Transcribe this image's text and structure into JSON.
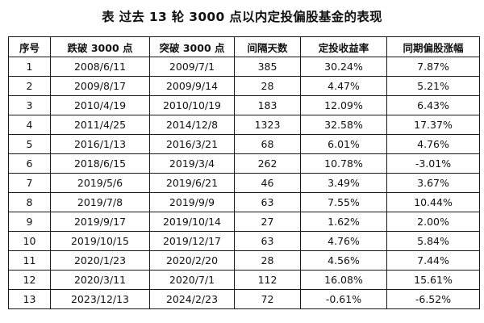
{
  "title": "表  过去 13 轮 3000 点以内定投偏股基金的表现",
  "table": {
    "headers": [
      "序号",
      "跌破 3000 点",
      "突破 3000 点",
      "间隔天数",
      "定投收益率",
      "同期偏股涨幅"
    ],
    "rows": [
      [
        "1",
        "2008/6/11",
        "2009/7/1",
        "385",
        "30.24%",
        "7.87%"
      ],
      [
        "2",
        "2009/8/17",
        "2009/9/14",
        "28",
        "4.47%",
        "5.21%"
      ],
      [
        "3",
        "2010/4/19",
        "2010/10/19",
        "183",
        "12.09%",
        "6.43%"
      ],
      [
        "4",
        "2011/4/25",
        "2014/12/8",
        "1323",
        "32.58%",
        "17.37%"
      ],
      [
        "5",
        "2016/1/13",
        "2016/3/21",
        "68",
        "6.01%",
        "4.76%"
      ],
      [
        "6",
        "2018/6/15",
        "2019/3/4",
        "262",
        "10.78%",
        "-3.01%"
      ],
      [
        "7",
        "2019/5/6",
        "2019/6/21",
        "46",
        "3.49%",
        "3.67%"
      ],
      [
        "8",
        "2019/7/8",
        "2019/9/9",
        "63",
        "7.55%",
        "10.44%"
      ],
      [
        "9",
        "2019/9/17",
        "2019/10/14",
        "27",
        "1.62%",
        "2.00%"
      ],
      [
        "10",
        "2019/10/15",
        "2019/12/17",
        "63",
        "4.76%",
        "5.84%"
      ],
      [
        "11",
        "2020/1/23",
        "2020/2/20",
        "28",
        "4.56%",
        "7.44%"
      ],
      [
        "12",
        "2020/3/11",
        "2020/7/1",
        "112",
        "16.08%",
        "15.61%"
      ],
      [
        "13",
        "2023/12/13",
        "2024/2/23",
        "72",
        "-0.61%",
        "-6.52%"
      ]
    ]
  }
}
